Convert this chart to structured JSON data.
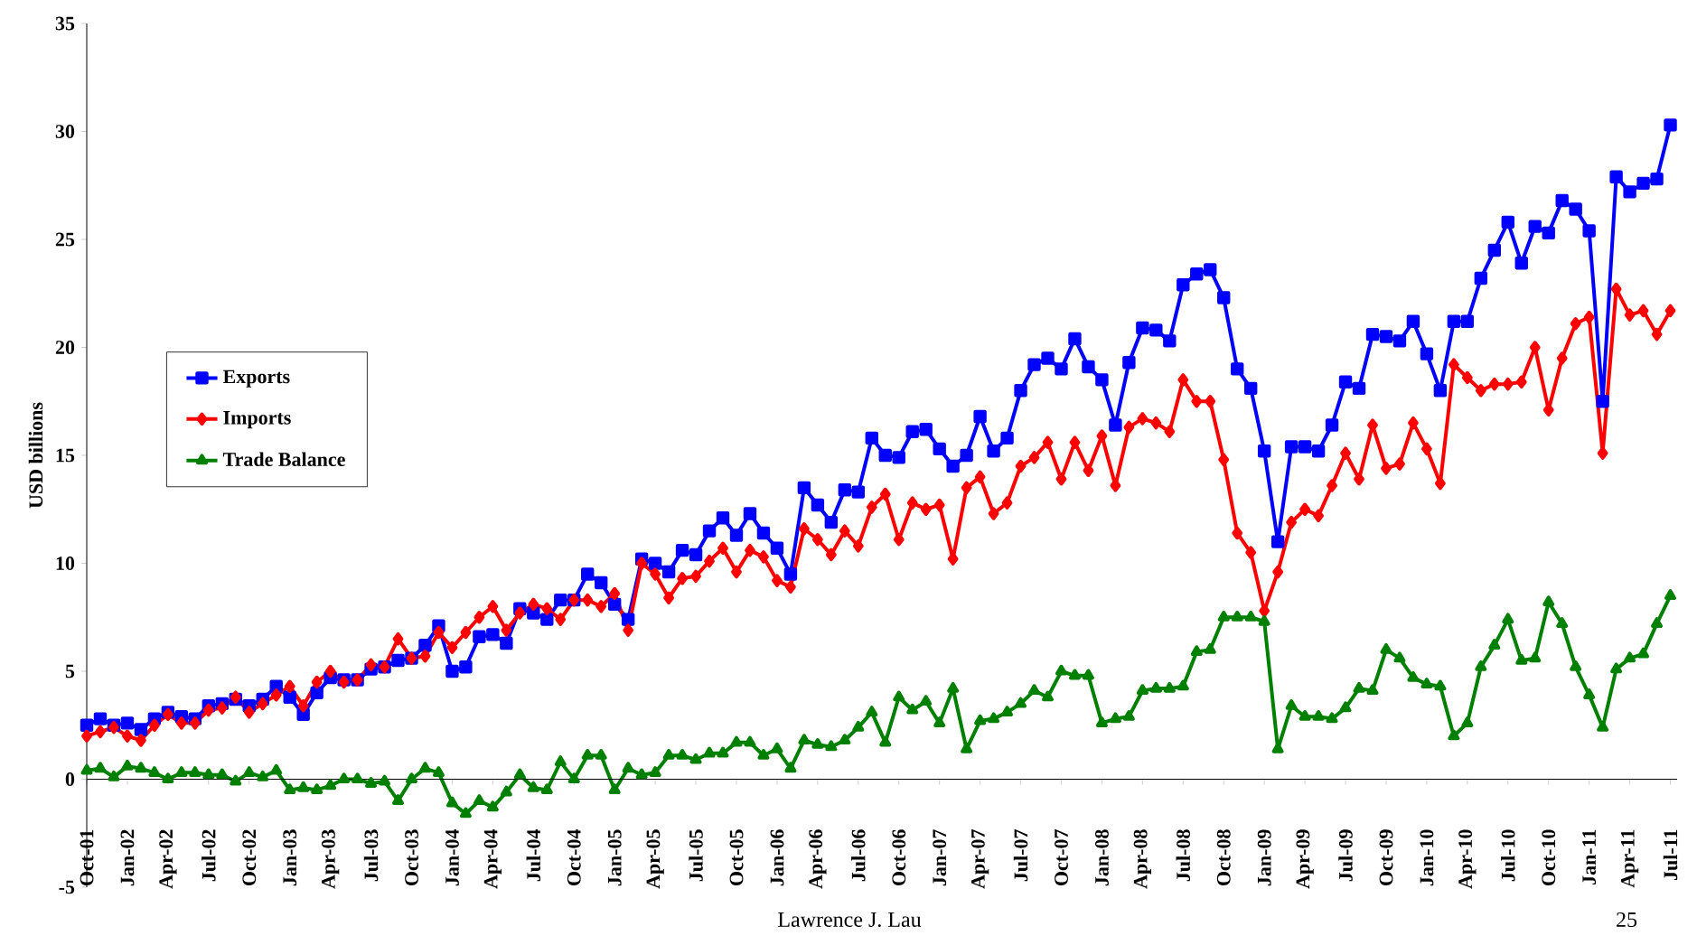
{
  "chart_data": {
    "type": "line",
    "ylabel": "USD billions",
    "categories": [
      "Oct-01",
      null,
      null,
      "Jan-02",
      null,
      null,
      "Apr-02",
      null,
      null,
      "Jul-02",
      null,
      null,
      "Oct-02",
      null,
      null,
      "Jan-03",
      null,
      null,
      "Apr-03",
      null,
      null,
      "Jul-03",
      null,
      null,
      "Oct-03",
      null,
      null,
      "Jan-04",
      null,
      null,
      "Apr-04",
      null,
      null,
      "Jul-04",
      null,
      null,
      "Oct-04",
      null,
      null,
      "Jan-05",
      null,
      null,
      "Apr-05",
      null,
      null,
      "Jul-05",
      null,
      null,
      "Oct-05",
      null,
      null,
      "Jan-06",
      null,
      null,
      "Apr-06",
      null,
      null,
      "Jul-06",
      null,
      null,
      "Oct-06",
      null,
      null,
      "Jan-07",
      null,
      null,
      "Apr-07",
      null,
      null,
      "Jul-07",
      null,
      null,
      "Oct-07",
      null,
      null,
      "Jan-08",
      null,
      null,
      "Apr-08",
      null,
      null,
      "Jul-08",
      null,
      null,
      "Oct-08",
      null,
      null,
      "Jan-09",
      null,
      null,
      "Apr-09",
      null,
      null,
      "Jul-09",
      null,
      null,
      "Oct-09",
      null,
      null,
      "Jan-10",
      null,
      null,
      "Apr-10",
      null,
      null,
      "Jul-10",
      null,
      null,
      "Oct-10",
      null,
      null,
      "Jan-11",
      null,
      null,
      "Apr-11",
      null,
      null,
      "Jul-11"
    ],
    "series": [
      {
        "name": "Exports",
        "color": "#0000ff",
        "marker": "square",
        "values": [
          2.5,
          2.8,
          2.5,
          2.6,
          2.3,
          2.8,
          3.1,
          2.9,
          2.8,
          3.4,
          3.5,
          3.7,
          3.4,
          3.7,
          4.3,
          3.8,
          3.0,
          4.0,
          4.7,
          4.6,
          4.6,
          5.1,
          5.2,
          5.5,
          5.6,
          6.2,
          7.1,
          5.0,
          5.2,
          6.6,
          6.7,
          6.3,
          7.9,
          7.7,
          7.4,
          8.3,
          8.3,
          9.5,
          9.1,
          8.1,
          7.4,
          10.2,
          10.0,
          9.6,
          10.6,
          10.4,
          11.5,
          12.1,
          11.3,
          12.3,
          11.4,
          10.7,
          9.5,
          13.5,
          12.7,
          11.9,
          13.4,
          13.3,
          15.8,
          15.0,
          14.9,
          16.1,
          16.2,
          15.3,
          14.5,
          15.0,
          16.8,
          15.2,
          15.8,
          18.0,
          19.2,
          19.5,
          19.0,
          20.4,
          19.1,
          18.5,
          16.4,
          19.3,
          20.9,
          20.8,
          20.3,
          22.9,
          23.4,
          23.6,
          22.3,
          19.0,
          18.1,
          15.2,
          11.0,
          15.4,
          15.4,
          15.2,
          16.4,
          18.4,
          18.1,
          20.6,
          20.5,
          20.3,
          21.2,
          19.7,
          18.0,
          21.2,
          21.2,
          23.2,
          24.5,
          25.8,
          23.9,
          25.6,
          25.3,
          26.8,
          26.4,
          25.4,
          17.5,
          27.9,
          27.2,
          27.6,
          27.8,
          30.3
        ]
      },
      {
        "name": "Imports",
        "color": "#ff0000",
        "marker": "diamond",
        "values": [
          2.0,
          2.2,
          2.4,
          2.0,
          1.8,
          2.5,
          3.0,
          2.6,
          2.6,
          3.2,
          3.3,
          3.8,
          3.1,
          3.5,
          3.9,
          4.3,
          3.4,
          4.5,
          5.0,
          4.5,
          4.6,
          5.3,
          5.2,
          6.5,
          5.6,
          5.7,
          6.8,
          6.1,
          6.8,
          7.5,
          8.0,
          6.9,
          7.7,
          8.1,
          7.9,
          7.4,
          8.3,
          8.3,
          8.0,
          8.6,
          6.9,
          10.0,
          9.5,
          8.4,
          9.3,
          9.4,
          10.1,
          10.7,
          9.6,
          10.6,
          10.3,
          9.2,
          8.9,
          11.6,
          11.1,
          10.4,
          11.5,
          10.8,
          12.6,
          13.2,
          11.1,
          12.8,
          12.5,
          12.7,
          10.2,
          13.5,
          14.0,
          12.3,
          12.8,
          14.5,
          14.9,
          15.6,
          13.9,
          15.6,
          14.3,
          15.9,
          13.6,
          16.3,
          16.7,
          16.5,
          16.1,
          18.5,
          17.5,
          17.5,
          14.8,
          11.4,
          10.5,
          7.8,
          9.6,
          11.9,
          12.5,
          12.2,
          13.6,
          15.1,
          13.9,
          16.4,
          14.4,
          14.6,
          16.5,
          15.3,
          13.7,
          19.2,
          18.6,
          18.0,
          18.3,
          18.3,
          18.4,
          20.0,
          17.1,
          19.5,
          21.1,
          21.4,
          15.1,
          22.7,
          21.5,
          21.7,
          20.6,
          21.7
        ]
      },
      {
        "name": "Trade Balance",
        "color": "#008000",
        "marker": "triangle",
        "values": [
          0.4,
          0.5,
          0.1,
          0.6,
          0.5,
          0.3,
          0.0,
          0.3,
          0.3,
          0.2,
          0.2,
          -0.1,
          0.3,
          0.1,
          0.4,
          -0.5,
          -0.4,
          -0.5,
          -0.3,
          0.0,
          0.0,
          -0.2,
          -0.1,
          -1.0,
          0.0,
          0.5,
          0.3,
          -1.1,
          -1.6,
          -1.0,
          -1.3,
          -0.6,
          0.2,
          -0.4,
          -0.5,
          0.8,
          0.0,
          1.1,
          1.1,
          -0.5,
          0.5,
          0.2,
          0.3,
          1.1,
          1.1,
          0.9,
          1.2,
          1.2,
          1.7,
          1.7,
          1.1,
          1.4,
          0.5,
          1.8,
          1.6,
          1.5,
          1.8,
          2.4,
          3.1,
          1.7,
          3.8,
          3.2,
          3.6,
          2.6,
          4.2,
          1.4,
          2.7,
          2.8,
          3.1,
          3.5,
          4.1,
          3.8,
          5.0,
          4.8,
          4.8,
          2.6,
          2.8,
          2.9,
          4.1,
          4.2,
          4.2,
          4.3,
          5.9,
          6.0,
          7.5,
          7.5,
          7.5,
          7.3,
          1.4,
          3.4,
          2.9,
          2.9,
          2.8,
          3.3,
          4.2,
          4.1,
          6.0,
          5.6,
          4.7,
          4.4,
          4.3,
          2.0,
          2.6,
          5.2,
          6.2,
          7.4,
          5.5,
          5.6,
          8.2,
          7.2,
          5.2,
          3.9,
          2.4,
          5.1,
          5.6,
          5.8,
          7.2,
          8.5
        ]
      }
    ],
    "ylim": [
      -5,
      35
    ],
    "yticks": [
      -5,
      0,
      5,
      10,
      15,
      20,
      25,
      30,
      35
    ],
    "legend": "left",
    "grid": false,
    "line_style": "solid",
    "annotations": [
      "Lawrence J. Lau",
      "25"
    ]
  }
}
